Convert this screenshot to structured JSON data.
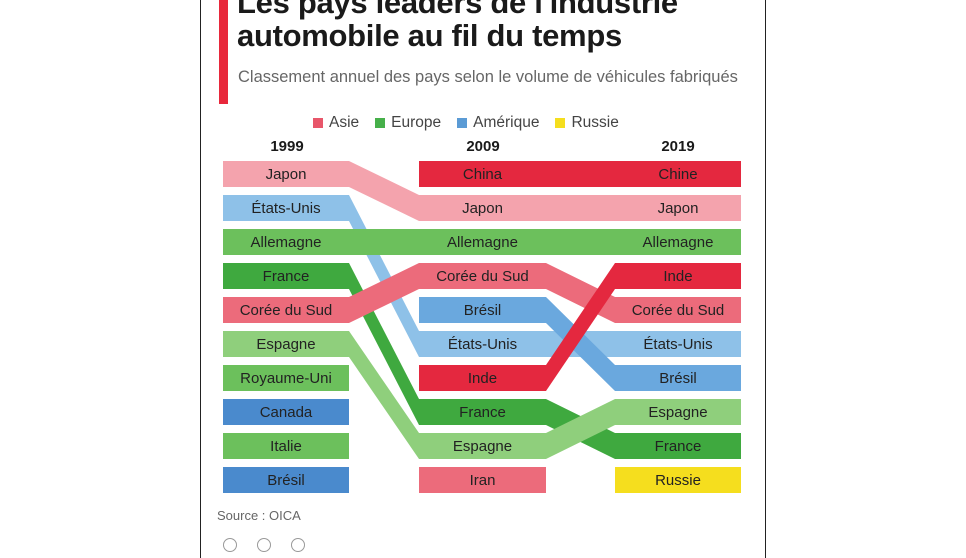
{
  "title": "Les pays leaders de l'industrie automobile au fil du temps",
  "subtitle": "Classement annuel des pays selon le volume de véhicules fabriqués",
  "source": "Source : OICA",
  "legend": [
    {
      "name": "Asie",
      "color": "#e8566a"
    },
    {
      "name": "Europe",
      "color": "#46b04a"
    },
    {
      "name": "Amérique",
      "color": "#5b9bd5"
    },
    {
      "name": "Russie",
      "color": "#f5de1e"
    }
  ],
  "chart_data": {
    "type": "bump",
    "years": [
      "1999",
      "2009",
      "2019"
    ],
    "rankings": {
      "1999": [
        "Japon",
        "États-Unis",
        "Allemagne",
        "France",
        "Corée du Sud",
        "Espagne",
        "Royaume-Uni",
        "Canada",
        "Italie",
        "Brésil"
      ],
      "2009": [
        "China",
        "Japon",
        "Allemagne",
        "Corée du Sud",
        "Brésil",
        "États-Unis",
        "Inde",
        "France",
        "Espagne",
        "Iran"
      ],
      "2019": [
        "Chine",
        "Japon",
        "Allemagne",
        "Inde",
        "Corée du Sud",
        "États-Unis",
        "Brésil",
        "Espagne",
        "France",
        "Russie"
      ]
    },
    "flows": [
      {
        "region": "Asie",
        "shade": "light",
        "ranks": [
          1,
          2,
          2
        ]
      },
      {
        "region": "Amérique",
        "shade": "light",
        "ranks": [
          2,
          6,
          6
        ]
      },
      {
        "region": "Europe",
        "shade": "mid",
        "ranks": [
          3,
          3,
          3
        ]
      },
      {
        "region": "Europe",
        "shade": "dark",
        "ranks": [
          4,
          8,
          9
        ]
      },
      {
        "region": "Asie",
        "shade": "mid",
        "ranks": [
          5,
          4,
          5
        ]
      },
      {
        "region": "Europe",
        "shade": "light",
        "ranks": [
          6,
          9,
          8
        ]
      },
      {
        "region": "Amérique",
        "shade": "mid",
        "ranks": [
          null,
          5,
          7
        ]
      },
      {
        "region": "Asie",
        "shade": "dark",
        "ranks": [
          null,
          1,
          1
        ]
      },
      {
        "region": "Asie",
        "shade": "dark",
        "ranks": [
          null,
          7,
          4
        ]
      }
    ],
    "isolated": [
      {
        "year": "1999",
        "rank": 7,
        "region": "Europe",
        "shade": "mid"
      },
      {
        "year": "1999",
        "rank": 8,
        "region": "Amérique",
        "shade": "dark"
      },
      {
        "year": "1999",
        "rank": 9,
        "region": "Europe",
        "shade": "mid"
      },
      {
        "year": "1999",
        "rank": 10,
        "region": "Amérique",
        "shade": "dark"
      },
      {
        "year": "2009",
        "rank": 10,
        "region": "Asie",
        "shade": "mid"
      },
      {
        "year": "2019",
        "rank": 10,
        "region": "Russie",
        "shade": "mid"
      }
    ],
    "palette": {
      "Asie": {
        "light": "#f4a3ad",
        "mid": "#ec6b7b",
        "dark": "#e4283f"
      },
      "Europe": {
        "light": "#8fcf7c",
        "mid": "#6cc05c",
        "dark": "#3fa93f"
      },
      "Amérique": {
        "light": "#8ec1e8",
        "mid": "#6aa8de",
        "dark": "#4a8acd"
      },
      "Russie": {
        "mid": "#f5de1e"
      }
    }
  }
}
